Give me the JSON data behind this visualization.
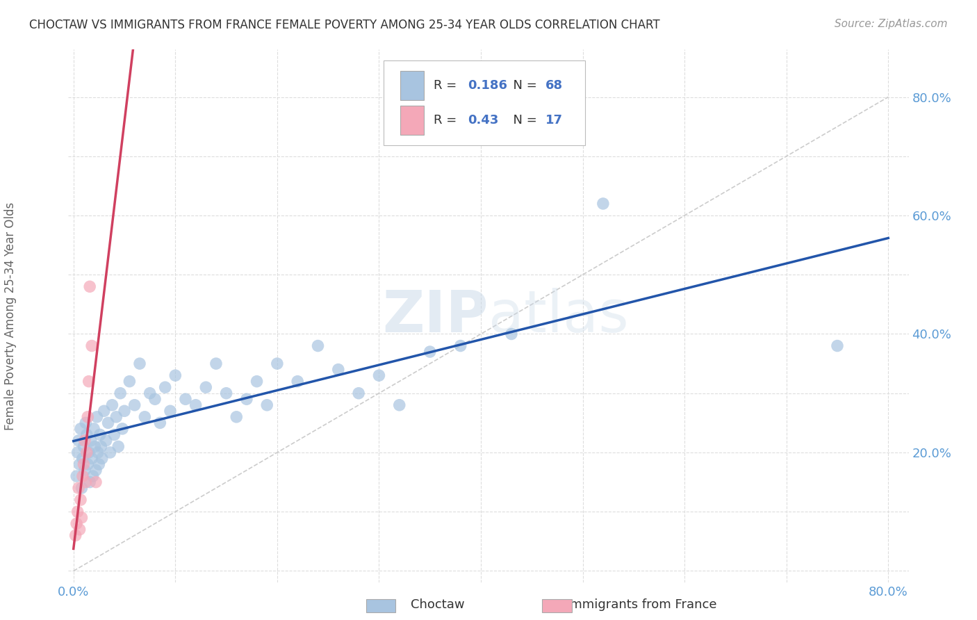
{
  "title": "CHOCTAW VS IMMIGRANTS FROM FRANCE FEMALE POVERTY AMONG 25-34 YEAR OLDS CORRELATION CHART",
  "source": "Source: ZipAtlas.com",
  "ylabel": "Female Poverty Among 25-34 Year Olds",
  "legend_bottom": [
    "Choctaw",
    "Immigrants from France"
  ],
  "choctaw_R": 0.186,
  "choctaw_N": 68,
  "france_R": 0.43,
  "france_N": 17,
  "background_color": "#ffffff",
  "choctaw_color": "#a8c4e0",
  "france_color": "#f4a8b8",
  "choctaw_line_color": "#2255aa",
  "france_line_color": "#d04060",
  "watermark_color": "#c8d8e8",
  "choctaw_x": [
    0.003,
    0.004,
    0.005,
    0.006,
    0.007,
    0.008,
    0.009,
    0.01,
    0.011,
    0.012,
    0.013,
    0.014,
    0.015,
    0.016,
    0.017,
    0.018,
    0.019,
    0.02,
    0.021,
    0.022,
    0.023,
    0.024,
    0.025,
    0.026,
    0.027,
    0.028,
    0.03,
    0.032,
    0.034,
    0.036,
    0.038,
    0.04,
    0.042,
    0.044,
    0.046,
    0.048,
    0.05,
    0.055,
    0.06,
    0.065,
    0.07,
    0.075,
    0.08,
    0.085,
    0.09,
    0.095,
    0.1,
    0.11,
    0.12,
    0.13,
    0.14,
    0.15,
    0.16,
    0.17,
    0.18,
    0.19,
    0.2,
    0.22,
    0.24,
    0.26,
    0.28,
    0.3,
    0.32,
    0.35,
    0.38,
    0.43,
    0.52,
    0.75
  ],
  "choctaw_y": [
    0.16,
    0.2,
    0.22,
    0.18,
    0.24,
    0.14,
    0.19,
    0.21,
    0.17,
    0.25,
    0.23,
    0.18,
    0.2,
    0.15,
    0.22,
    0.19,
    0.16,
    0.24,
    0.21,
    0.17,
    0.26,
    0.2,
    0.18,
    0.23,
    0.21,
    0.19,
    0.27,
    0.22,
    0.25,
    0.2,
    0.28,
    0.23,
    0.26,
    0.21,
    0.3,
    0.24,
    0.27,
    0.32,
    0.28,
    0.35,
    0.26,
    0.3,
    0.29,
    0.25,
    0.31,
    0.27,
    0.33,
    0.29,
    0.28,
    0.31,
    0.35,
    0.3,
    0.26,
    0.29,
    0.32,
    0.28,
    0.35,
    0.32,
    0.38,
    0.34,
    0.3,
    0.33,
    0.28,
    0.37,
    0.38,
    0.4,
    0.62,
    0.38
  ],
  "france_x": [
    0.002,
    0.003,
    0.004,
    0.005,
    0.006,
    0.007,
    0.008,
    0.009,
    0.01,
    0.011,
    0.012,
    0.013,
    0.014,
    0.015,
    0.016,
    0.018,
    0.022
  ],
  "france_y": [
    0.06,
    0.08,
    0.1,
    0.14,
    0.07,
    0.12,
    0.09,
    0.16,
    0.18,
    0.22,
    0.15,
    0.2,
    0.26,
    0.32,
    0.48,
    0.38,
    0.15
  ],
  "xlim": [
    -0.005,
    0.82
  ],
  "ylim": [
    -0.02,
    0.88
  ],
  "xticks": [
    0.0,
    0.1,
    0.2,
    0.3,
    0.4,
    0.5,
    0.6,
    0.7,
    0.8
  ],
  "yticks": [
    0.0,
    0.1,
    0.2,
    0.3,
    0.4,
    0.5,
    0.6,
    0.7,
    0.8
  ]
}
